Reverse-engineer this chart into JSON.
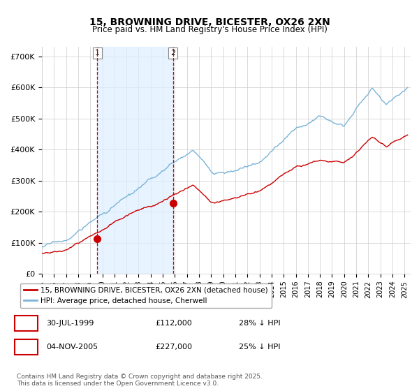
{
  "title": "15, BROWNING DRIVE, BICESTER, OX26 2XN",
  "subtitle": "Price paid vs. HM Land Registry's House Price Index (HPI)",
  "ylabel_ticks": [
    "£0",
    "£100K",
    "£200K",
    "£300K",
    "£400K",
    "£500K",
    "£600K",
    "£700K"
  ],
  "ytick_values": [
    0,
    100000,
    200000,
    300000,
    400000,
    500000,
    600000,
    700000
  ],
  "ylim": [
    0,
    730000
  ],
  "xlim_start": 1995.0,
  "xlim_end": 2025.5,
  "hpi_color": "#7ab4d8",
  "price_color": "#cc0000",
  "marker_color": "#cc0000",
  "vline_color": "#cc0000",
  "shade_color": "#ddeeff",
  "grid_color": "#cccccc",
  "bg_color": "#ffffff",
  "legend_label_price": "15, BROWNING DRIVE, BICESTER, OX26 2XN (detached house)",
  "legend_label_hpi": "HPI: Average price, detached house, Cherwell",
  "transaction1_date": "30-JUL-1999",
  "transaction1_price": "£112,000",
  "transaction1_hpi": "28% ↓ HPI",
  "transaction1_year": 1999.58,
  "transaction1_value": 112000,
  "transaction2_date": "04-NOV-2005",
  "transaction2_price": "£227,000",
  "transaction2_hpi": "25% ↓ HPI",
  "transaction2_year": 2005.84,
  "transaction2_value": 227000,
  "footnote": "Contains HM Land Registry data © Crown copyright and database right 2025.\nThis data is licensed under the Open Government Licence v3.0."
}
